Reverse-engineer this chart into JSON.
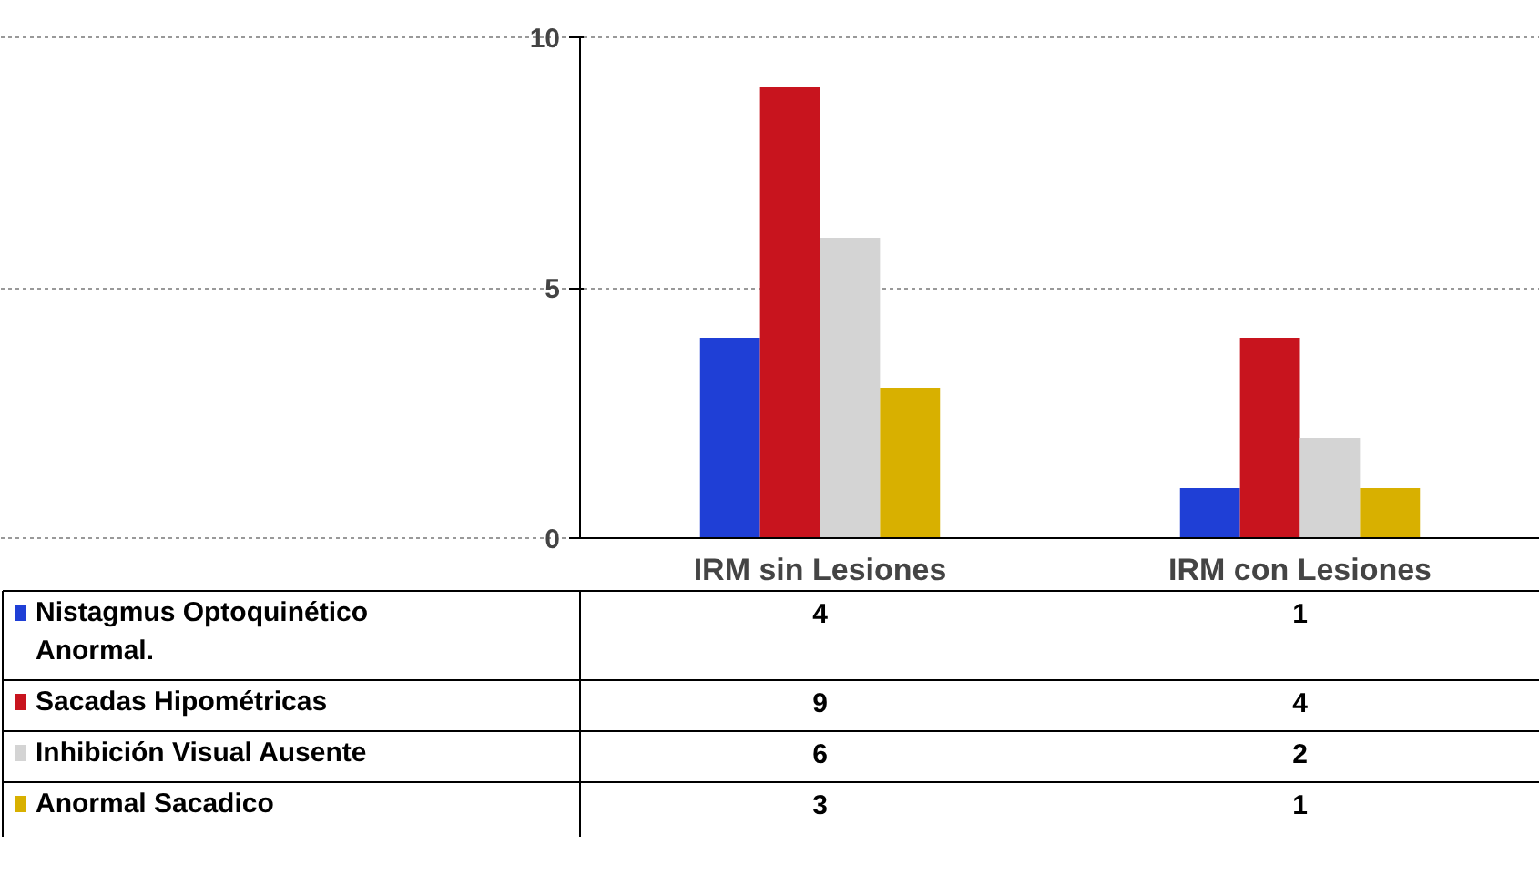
{
  "chart_data": {
    "type": "bar",
    "categories": [
      "IRM sin Lesiones",
      "IRM con Lesiones"
    ],
    "series": [
      {
        "name": "Nistagmus Optoquinético Anormal.",
        "color": "#1f3fd6",
        "values": [
          4,
          1
        ]
      },
      {
        "name": "Sacadas Hipométricas",
        "color": "#c8141e",
        "values": [
          9,
          4
        ]
      },
      {
        "name": "Inhibición Visual Ausente",
        "color": "#d4d4d4",
        "values": [
          6,
          2
        ]
      },
      {
        "name": "Anormal Sacadico",
        "color": "#d8b000",
        "values": [
          3,
          1
        ]
      }
    ],
    "ylim": [
      0,
      10
    ],
    "yticks": [
      0,
      5,
      10
    ],
    "grid": "y",
    "legend": "bottom left",
    "data_labels": true
  }
}
